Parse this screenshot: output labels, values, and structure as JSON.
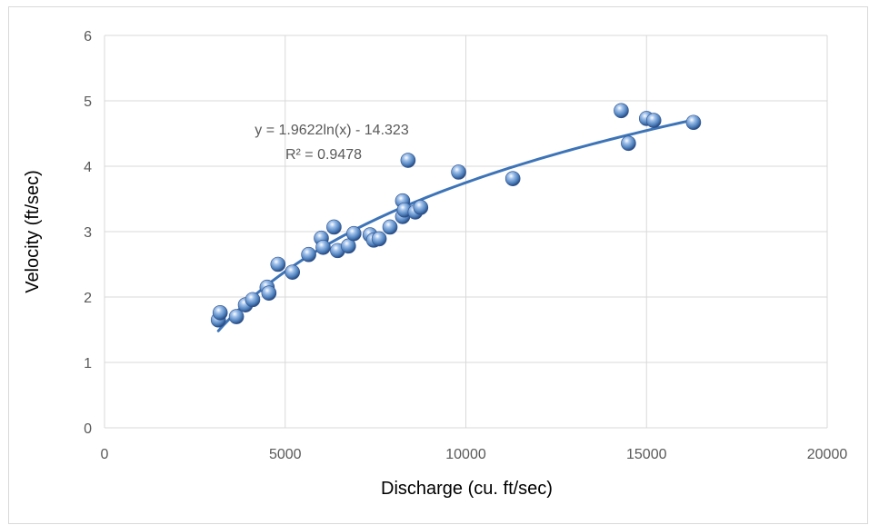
{
  "chart_data": {
    "type": "scatter",
    "title": "",
    "xlabel": "Discharge (cu. ft/sec)",
    "ylabel": "Velocity (ft/sec)",
    "xlim": [
      0,
      20000
    ],
    "ylim": [
      0,
      6
    ],
    "xticks": [
      0,
      5000,
      10000,
      15000,
      20000
    ],
    "yticks": [
      0,
      1,
      2,
      3,
      4,
      5,
      6
    ],
    "xtick_labels": [
      "0",
      "5000",
      "10000",
      "15000",
      "20000"
    ],
    "ytick_labels": [
      "0",
      "1",
      "2",
      "3",
      "4",
      "5",
      "6"
    ],
    "grid": true,
    "legend": "none",
    "marker_color": "#4f81bd",
    "trendline_color": "#3d74b8",
    "trendline": {
      "type": "log",
      "a": 1.9622,
      "b": -14.323,
      "x_range": [
        3150,
        16300
      ],
      "equation": "y = 1.9622ln(x) - 14.323",
      "r2": "R² = 0.9478"
    },
    "points": [
      [
        3150,
        1.65
      ],
      [
        3200,
        1.76
      ],
      [
        3650,
        1.7
      ],
      [
        3900,
        1.88
      ],
      [
        4100,
        1.96
      ],
      [
        4500,
        2.15
      ],
      [
        4550,
        2.06
      ],
      [
        4800,
        2.5
      ],
      [
        5200,
        2.38
      ],
      [
        5650,
        2.65
      ],
      [
        6000,
        2.9
      ],
      [
        6050,
        2.76
      ],
      [
        6350,
        3.07
      ],
      [
        6450,
        2.71
      ],
      [
        6750,
        2.78
      ],
      [
        6900,
        2.97
      ],
      [
        7350,
        2.95
      ],
      [
        7450,
        2.87
      ],
      [
        7600,
        2.89
      ],
      [
        7900,
        3.07
      ],
      [
        8250,
        3.47
      ],
      [
        8250,
        3.23
      ],
      [
        8300,
        3.33
      ],
      [
        8400,
        4.09
      ],
      [
        8600,
        3.3
      ],
      [
        8750,
        3.37
      ],
      [
        9800,
        3.91
      ],
      [
        11300,
        3.81
      ],
      [
        14300,
        4.85
      ],
      [
        14500,
        4.35
      ],
      [
        15000,
        4.73
      ],
      [
        15200,
        4.7
      ],
      [
        16300,
        4.67
      ]
    ]
  }
}
